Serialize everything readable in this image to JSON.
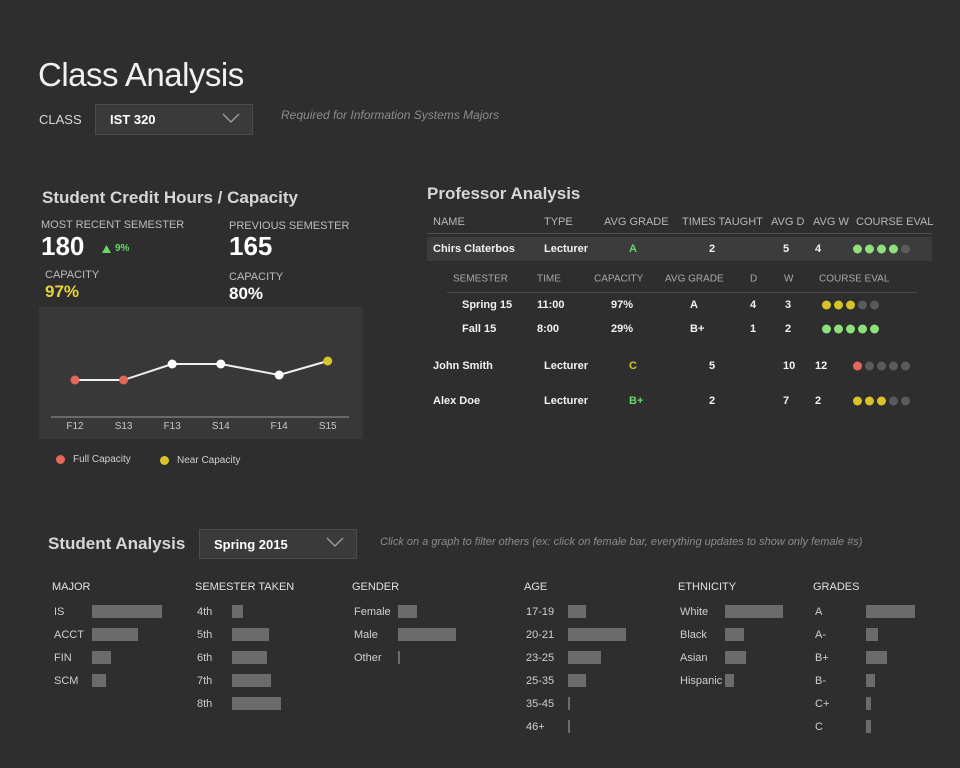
{
  "page": {
    "title": "Class Analysis",
    "class_label": "CLASS",
    "class_value": "IST 320",
    "class_note": "Required for Information Systems Majors"
  },
  "credit_hours": {
    "title": "Student Credit Hours / Capacity",
    "recent_label": "MOST RECENT SEMESTER",
    "recent_value": "180",
    "recent_change": "9%",
    "previous_label": "PREVIOUS SEMESTER",
    "previous_value": "165",
    "capacity_label": "CAPACITY",
    "recent_capacity": "97%",
    "previous_capacity": "80%",
    "legend_full": "Full Capacity",
    "legend_near": "Near Capacity",
    "colors": {
      "full": "#e5675a",
      "near": "#d8c42a",
      "normal": "#ffffff",
      "up": "#66d86a"
    }
  },
  "chart_data": {
    "type": "line",
    "title": "",
    "categories": [
      "F12",
      "S13",
      "F13",
      "S14",
      "F14",
      "S15"
    ],
    "x_index": [
      0,
      1,
      2,
      3,
      4.2,
      5.2
    ],
    "values": [
      37,
      37,
      53,
      53,
      42,
      56
    ],
    "status": [
      "full",
      "full",
      "normal",
      "normal",
      "normal",
      "near"
    ],
    "ylim": [
      0,
      100
    ],
    "grid": false
  },
  "professor": {
    "title": "Professor Analysis",
    "headers": [
      "NAME",
      "TYPE",
      "AVG GRADE",
      "TIMES TAUGHT",
      "AVG D",
      "AVG W",
      "COURSE EVAL"
    ],
    "sub_headers": [
      "SEMESTER",
      "TIME",
      "CAPACITY",
      "AVG GRADE",
      "D",
      "W",
      "COURSE EVAL"
    ],
    "rows": [
      {
        "name": "Chirs Claterbos",
        "type": "Lecturer",
        "grade": "A",
        "grade_color": "#66d86a",
        "times": "2",
        "d": "5",
        "w": "4",
        "eval": [
          1,
          1,
          1,
          1,
          0
        ],
        "eval_color": "#8ee07a"
      },
      {
        "name": "John Smith",
        "type": "Lecturer",
        "grade": "C",
        "grade_color": "#d8c42a",
        "times": "5",
        "d": "10",
        "w": "12",
        "eval": [
          1,
          0,
          0,
          0,
          0
        ],
        "eval_color": "#e5675a"
      },
      {
        "name": "Alex Doe",
        "type": "Lecturer",
        "grade": "B+",
        "grade_color": "#66d86a",
        "times": "2",
        "d": "7",
        "w": "2",
        "eval": [
          1,
          1,
          1,
          0,
          0
        ],
        "eval_color": "#d8c42a"
      }
    ],
    "sub_rows": [
      {
        "semester": "Spring 15",
        "time": "11:00",
        "capacity": "97%",
        "grade": "A",
        "d": "4",
        "w": "3",
        "eval": [
          1,
          1,
          1,
          0,
          0
        ],
        "eval_color": "#d8c42a"
      },
      {
        "semester": "Fall 15",
        "time": "8:00",
        "capacity": "29%",
        "grade": "B+",
        "d": "1",
        "w": "2",
        "eval": [
          1,
          1,
          1,
          1,
          1
        ],
        "eval_color": "#8ee07a"
      }
    ],
    "empty_dot_color": "#5a5a5a"
  },
  "student": {
    "title": "Student Analysis",
    "semester_value": "Spring 2015",
    "note": "Click on a graph to filter others (ex: click on female bar, everything updates to show only female #s)",
    "groups": [
      {
        "title": "MAJOR",
        "items": [
          {
            "label": "IS",
            "value": 70
          },
          {
            "label": "ACCT",
            "value": 46
          },
          {
            "label": "FIN",
            "value": 19
          },
          {
            "label": "SCM",
            "value": 14
          }
        ]
      },
      {
        "title": "SEMESTER TAKEN",
        "items": [
          {
            "label": "4th",
            "value": 11
          },
          {
            "label": "5th",
            "value": 37
          },
          {
            "label": "6th",
            "value": 35
          },
          {
            "label": "7th",
            "value": 39
          },
          {
            "label": "8th",
            "value": 49
          }
        ]
      },
      {
        "title": "GENDER",
        "items": [
          {
            "label": "Female",
            "value": 19
          },
          {
            "label": "Male",
            "value": 58
          },
          {
            "label": "Other",
            "value": 2
          }
        ]
      },
      {
        "title": "AGE",
        "items": [
          {
            "label": "17-19",
            "value": 18
          },
          {
            "label": "20-21",
            "value": 58
          },
          {
            "label": "23-25",
            "value": 33
          },
          {
            "label": "25-35",
            "value": 18
          },
          {
            "label": "35-45",
            "value": 2
          },
          {
            "label": "46+",
            "value": 2
          }
        ]
      },
      {
        "title": "ETHNICITY",
        "items": [
          {
            "label": "White",
            "value": 58
          },
          {
            "label": "Black",
            "value": 19
          },
          {
            "label": "Asian",
            "value": 21
          },
          {
            "label": "Hispanic",
            "value": 9
          }
        ]
      },
      {
        "title": "GRADES",
        "items": [
          {
            "label": "A",
            "value": 49
          },
          {
            "label": "A-",
            "value": 12
          },
          {
            "label": "B+",
            "value": 21
          },
          {
            "label": "B-",
            "value": 9
          },
          {
            "label": "C+",
            "value": 5
          },
          {
            "label": "C",
            "value": 5
          }
        ]
      }
    ]
  }
}
